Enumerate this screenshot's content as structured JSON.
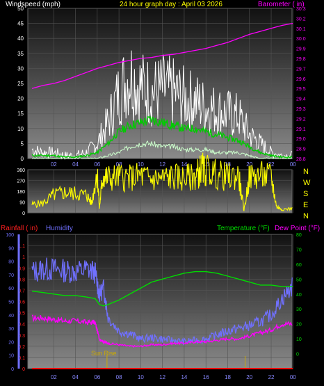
{
  "header": {
    "left_label": "Windspeed (mph)",
    "title": "24 hour graph day : April 03 2026",
    "right_label": "Barometer ( in)"
  },
  "colors": {
    "windspeed_label": "#ffffff",
    "title": "#ffff00",
    "barometer": "#ff00ff",
    "wind_max": "#ffffff",
    "wind_avg": "#00cc00",
    "wind_min": "#ccffcc",
    "direction": "#ffff00",
    "rain": "#ff0000",
    "humidity": "#7070ff",
    "temperature": "#00dd00",
    "dewpoint": "#ff00ff",
    "sunrise": "#ccaa00"
  },
  "compass": [
    "N",
    "W",
    "S",
    "E",
    "N"
  ],
  "sunrise_label": "Sun Rise",
  "chart_data": [
    {
      "type": "line",
      "name": "wind-barometer",
      "title": "24 hour graph day : April 03 2026",
      "xlabel": "",
      "x_ticks": [
        "02",
        "04",
        "06",
        "08",
        "10",
        "12",
        "14",
        "16",
        "18",
        "20",
        "22",
        "00"
      ],
      "y_left": {
        "label": "Windspeed (mph)",
        "ticks": [
          0,
          5,
          10,
          15,
          20,
          25,
          30,
          35,
          40,
          45,
          50
        ],
        "range": [
          0,
          50
        ]
      },
      "y_right": {
        "label": "Barometer ( in)",
        "ticks": [
          28.8,
          28.9,
          29.0,
          29.1,
          29.2,
          29.3,
          29.4,
          29.5,
          29.6,
          29.7,
          29.8,
          29.9,
          30.0,
          30.1,
          30.2,
          30.3
        ],
        "range": [
          28.8,
          30.3
        ]
      },
      "x": [
        0,
        1,
        2,
        3,
        4,
        5,
        6,
        7,
        8,
        9,
        10,
        11,
        12,
        13,
        14,
        15,
        16,
        17,
        18,
        19,
        20,
        21,
        22,
        23,
        24
      ],
      "series": {
        "barometer": [
          29.5,
          29.53,
          29.55,
          29.58,
          29.62,
          29.66,
          29.7,
          29.73,
          29.76,
          29.78,
          29.8,
          29.81,
          29.83,
          29.84,
          29.86,
          29.88,
          29.9,
          29.93,
          29.96,
          30.0,
          30.04,
          30.07,
          30.1,
          30.13,
          30.15
        ],
        "wind_max": [
          3,
          2,
          2,
          1,
          1,
          2,
          5,
          12,
          22,
          28,
          24,
          22,
          23,
          22,
          20,
          19,
          17,
          16,
          15,
          14,
          8,
          5,
          2,
          1,
          1
        ],
        "wind_avg": [
          1,
          1,
          1,
          0.5,
          0.5,
          1,
          2,
          5,
          9,
          11,
          12,
          13,
          12,
          11,
          10,
          10,
          9,
          8,
          7,
          6,
          4,
          2,
          1,
          0.5,
          0.5
        ],
        "wind_min": [
          0,
          0,
          0,
          0,
          0,
          0,
          0,
          1,
          2,
          4,
          5,
          5,
          4,
          4,
          3,
          3,
          3,
          2,
          2,
          2,
          1,
          0,
          0,
          0,
          0
        ]
      }
    },
    {
      "type": "line",
      "name": "wind-direction",
      "y_ticks": [
        0,
        90,
        180,
        270,
        360
      ],
      "y_range": [
        0,
        360
      ],
      "x": [
        0,
        1,
        2,
        3,
        4,
        5,
        5.5,
        6,
        6.2,
        6.5,
        7,
        8,
        9,
        10,
        11,
        12,
        13,
        14,
        15,
        15.5,
        16,
        17,
        18,
        19,
        19.5,
        20,
        21,
        22,
        22.5,
        23,
        24
      ],
      "values": [
        70,
        80,
        150,
        170,
        160,
        150,
        80,
        350,
        40,
        300,
        290,
        300,
        290,
        310,
        280,
        290,
        300,
        290,
        300,
        360,
        360,
        320,
        300,
        310,
        20,
        300,
        310,
        300,
        50,
        30,
        35
      ]
    },
    {
      "type": "line",
      "name": "rain-humidity-temperature",
      "x_ticks": [
        "02",
        "04",
        "06",
        "08",
        "10",
        "12",
        "14",
        "16",
        "18",
        "20",
        "22",
        "00"
      ],
      "y_rain": {
        "label": "Rainfall ( in)",
        "ticks": [
          0,
          0.1,
          0.2,
          0.3,
          0.4,
          0.5,
          0.6,
          0.7,
          0.8,
          0.9,
          1,
          1.1
        ],
        "range": [
          0,
          1.2
        ]
      },
      "y_humidity": {
        "label": "Humidity",
        "ticks": [
          0,
          10,
          20,
          30,
          40,
          50,
          60,
          70,
          80,
          90,
          100
        ],
        "range": [
          0,
          100
        ]
      },
      "y_temp": {
        "label": "Temperature (°F)",
        "label2": "Dew Point (°F)",
        "ticks": [
          0,
          10,
          20,
          30,
          40,
          50,
          60,
          70,
          80
        ],
        "range": [
          -10,
          80
        ]
      },
      "x": [
        0,
        1,
        2,
        3,
        4,
        5,
        5.8,
        6.2,
        6.6,
        7,
        8,
        9,
        10,
        11,
        12,
        13,
        14,
        15,
        16,
        17,
        18,
        19,
        20,
        21,
        22,
        23,
        24
      ],
      "series": {
        "rain": [
          0,
          0,
          0,
          0,
          0,
          0,
          0,
          0,
          0,
          0,
          0,
          0,
          0,
          0,
          0,
          0,
          0,
          0,
          0,
          0,
          0,
          0,
          0,
          0,
          0,
          0,
          0
        ],
        "humidity": [
          72,
          74,
          74,
          73,
          72,
          74,
          72,
          55,
          60,
          38,
          28,
          26,
          22,
          23,
          22,
          21,
          20,
          21,
          22,
          25,
          28,
          30,
          32,
          35,
          40,
          52,
          62
        ],
        "temperature": [
          42,
          41,
          40,
          39,
          39,
          38,
          37,
          33,
          32,
          33,
          36,
          40,
          44,
          48,
          50,
          52,
          54,
          55,
          55,
          54,
          52,
          50,
          48,
          46,
          46,
          45,
          45
        ],
        "dewpoint": [
          24,
          24,
          23,
          22,
          22,
          21,
          21,
          10,
          8,
          7,
          6,
          5,
          5,
          6,
          6,
          7,
          7,
          8,
          8,
          9,
          10,
          10,
          12,
          14,
          16,
          20,
          20
        ]
      }
    }
  ]
}
